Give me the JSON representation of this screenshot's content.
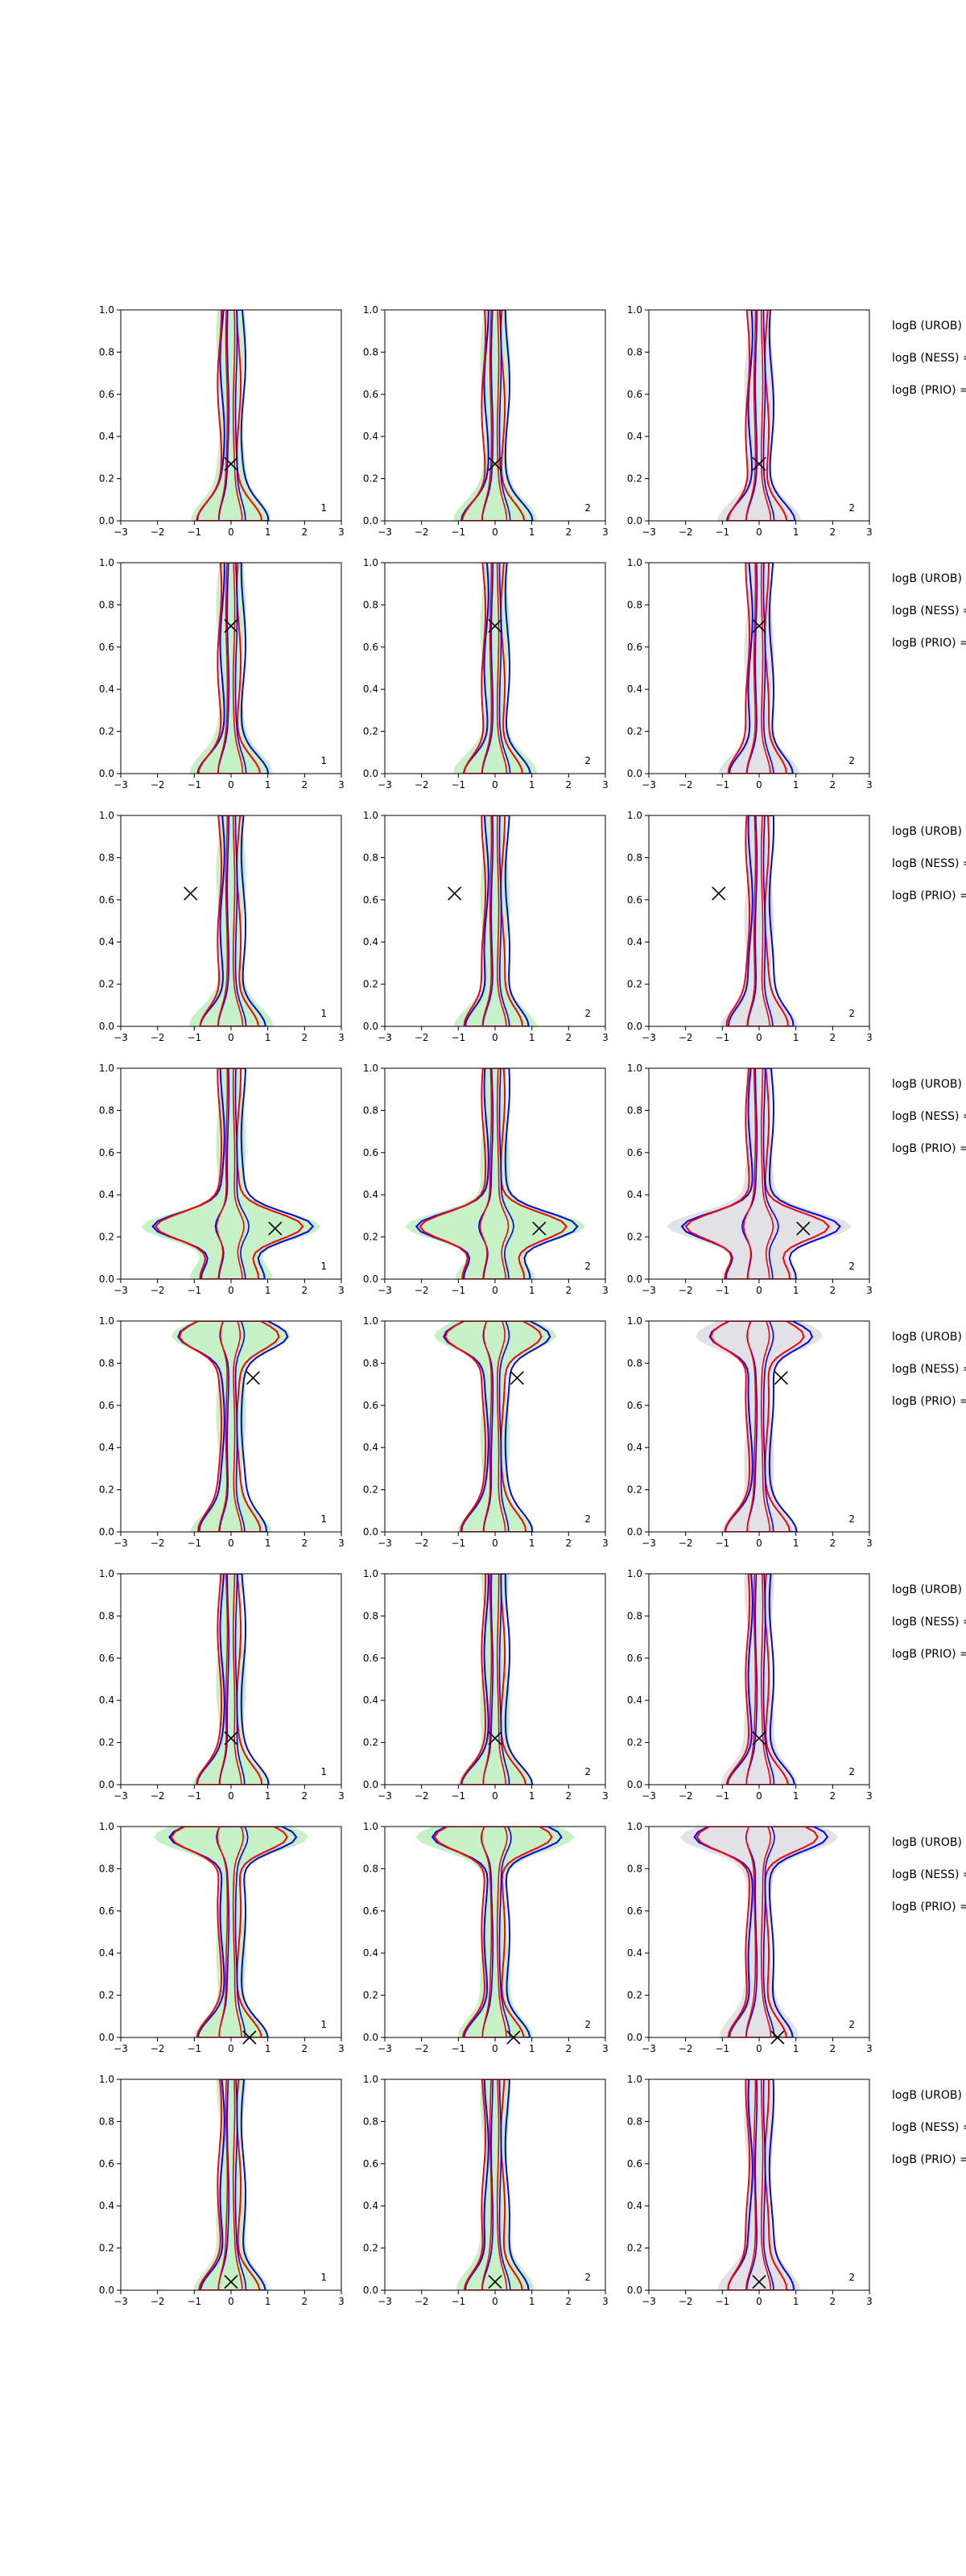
{
  "figure": {
    "rows": 8,
    "cols": 3,
    "colors": {
      "fill_green": "#c6f0c6",
      "fill_gray": "#e2e2e6",
      "contour_red": "#ff0000",
      "contour_blue": "#0000ff",
      "marker": "#000000"
    },
    "row_side_labels": [
      "logB (UROB) =",
      "logB (NESS) =",
      "logB (PRIO) ="
    ],
    "panel_corner_labels": [
      "1",
      "2",
      "2"
    ]
  },
  "chart_data": {
    "type": "contour",
    "grid": "8x3 small multiples",
    "xlim": [
      -3,
      3
    ],
    "ylim": [
      0.0,
      1.0
    ],
    "x_ticks": [
      "−3",
      "−2",
      "−1",
      "0",
      "1",
      "2",
      "3"
    ],
    "y_ticks": [
      "0.0",
      "0.2",
      "0.4",
      "0.6",
      "0.8",
      "1.0"
    ],
    "columns": [
      {
        "fill": "green",
        "corner_label": "1"
      },
      {
        "fill": "green",
        "corner_label": "2"
      },
      {
        "fill": "gray",
        "corner_label": "2"
      }
    ],
    "rows": [
      {
        "marker": {
          "x": 0.0,
          "y": 0.27
        },
        "lobe": null
      },
      {
        "marker": {
          "x": 0.0,
          "y": 0.7
        },
        "lobe": null
      },
      {
        "marker": {
          "x": -1.1,
          "y": 0.63
        },
        "lobe": null
      },
      {
        "marker": {
          "x": 1.2,
          "y": 0.24
        },
        "lobe": {
          "y": 0.25,
          "width": 1.6
        }
      },
      {
        "marker": {
          "x": 0.6,
          "y": 0.73
        },
        "lobe": {
          "y": 0.93,
          "width": 1.0
        }
      },
      {
        "marker": {
          "x": 0.0,
          "y": 0.22
        },
        "lobe": null
      },
      {
        "marker": {
          "x": 0.5,
          "y": 0.0
        },
        "lobe": {
          "y": 0.95,
          "width": 1.3
        }
      },
      {
        "marker": {
          "x": 0.0,
          "y": 0.04
        },
        "lobe": null
      }
    ]
  }
}
